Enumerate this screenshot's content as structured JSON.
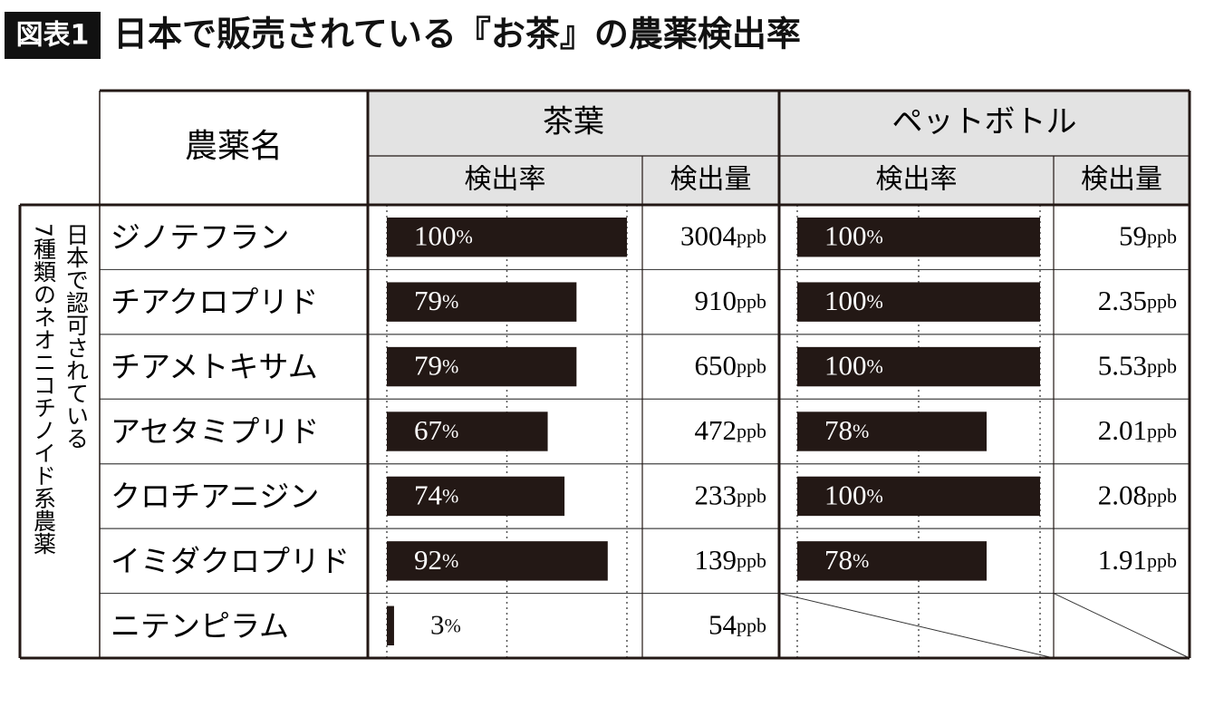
{
  "header": {
    "badge": "図表1",
    "title": "日本で販売されている『お茶』の農薬検出率"
  },
  "table": {
    "side_label": [
      "日本で認可されている",
      "7種類のネオニコチノイド系農薬"
    ],
    "name_header": "農薬名",
    "groups": [
      {
        "label": "茶葉",
        "subheaders": [
          "検出率",
          "検出量"
        ]
      },
      {
        "label": "ペットボトル",
        "subheaders": [
          "検出率",
          "検出量"
        ]
      }
    ],
    "rate_unit": "%",
    "amount_unit": "ppb",
    "rate_lim": [
      0,
      100
    ],
    "rate_ticks": [
      0,
      50,
      100
    ],
    "rows": [
      {
        "name": "ジノテフラン",
        "values": [
          100,
          3004,
          100,
          59
        ]
      },
      {
        "name": "チアクロプリド",
        "values": [
          79,
          910,
          100,
          2.35
        ]
      },
      {
        "name": "チアメトキサム",
        "values": [
          79,
          650,
          100,
          5.53
        ]
      },
      {
        "name": "アセタミプリド",
        "values": [
          67,
          472,
          78,
          2.01
        ]
      },
      {
        "name": "クロチアニジン",
        "values": [
          74,
          233,
          100,
          2.08
        ]
      },
      {
        "name": "イミダクロプリド",
        "values": [
          92,
          139,
          78,
          1.91
        ]
      },
      {
        "name": "ニテンピラム",
        "values": [
          3,
          54,
          null,
          null
        ]
      }
    ]
  }
}
